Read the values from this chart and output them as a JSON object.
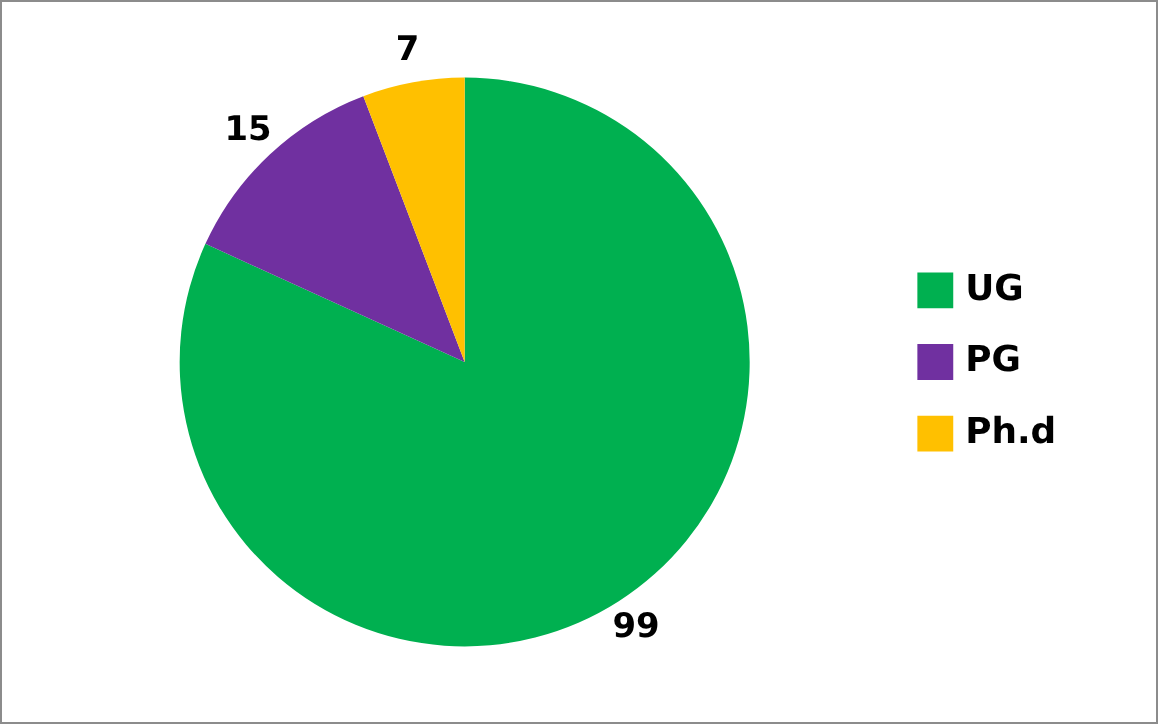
{
  "chart_data": {
    "type": "pie",
    "categories": [
      "UG",
      "PG",
      "Ph.d"
    ],
    "values": [
      99,
      15,
      7
    ],
    "colors": [
      "#00b050",
      "#7030a0",
      "#ffc000"
    ],
    "data_labels": true,
    "legend": "right"
  }
}
